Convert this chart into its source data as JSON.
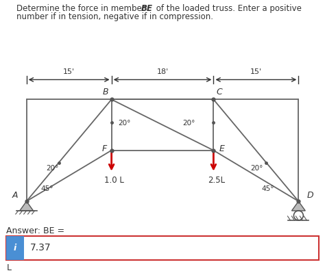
{
  "title_line1": "Determine the force in member ",
  "title_bold": "BE",
  "title_line1_end": " of the loaded truss. Enter a positive",
  "title_line2": "number if in tension, negative if in compression.",
  "bg_color": "#ffffff",
  "truss_color": "#666666",
  "answer_label": "Answer: BE =",
  "answer_value": "7.37",
  "answer_unit": "L",
  "info_box_color": "#4a8fd4",
  "info_box_border": "#cc3333",
  "dim_15_left": "15'",
  "dim_18_mid": "18'",
  "dim_15_right": "15'",
  "angle_20_BF": "20°",
  "angle_20_CE": "20°",
  "angle_20_left": "20°",
  "angle_20_right": "20°",
  "angle_45_A": "45°",
  "angle_45_D": "45°",
  "load_F": "1.0 L",
  "load_E": "2.5L",
  "load_color": "#cc0000",
  "node_label_color": "#333333",
  "node_dot_color": "#555555",
  "A": [
    0.0,
    0.0
  ],
  "B": [
    15.0,
    18.0
  ],
  "C": [
    33.0,
    18.0
  ],
  "D": [
    48.0,
    0.0
  ],
  "E": [
    33.0,
    9.0
  ],
  "F": [
    15.0,
    9.0
  ],
  "TL": [
    0.0,
    18.0
  ],
  "TR": [
    48.0,
    18.0
  ]
}
